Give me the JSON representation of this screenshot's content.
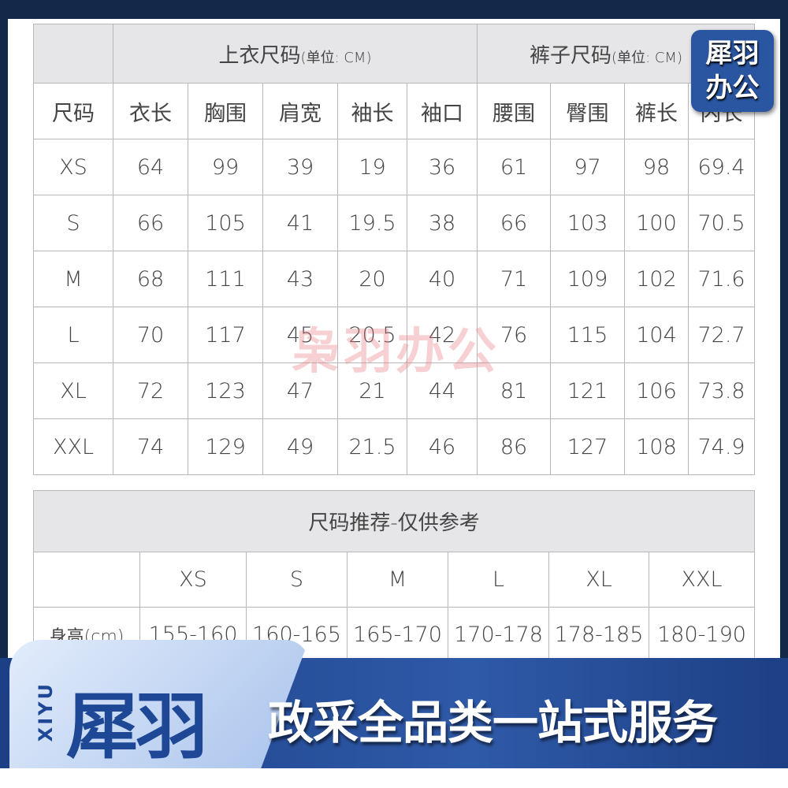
{
  "watermark": "枭羽办公",
  "badge": {
    "line1": "犀羽",
    "line2": "办公"
  },
  "size_table": {
    "top_title": "上衣尺码",
    "top_unit": "(单位: CM)",
    "pants_title": "裤子尺码",
    "pants_unit": "(单位: CM)",
    "columns": [
      "尺码",
      "衣长",
      "胸围",
      "肩宽",
      "袖长",
      "袖口",
      "腰围",
      "臀围",
      "裤长",
      "内长"
    ],
    "rows": [
      [
        "XS",
        "64",
        "99",
        "39",
        "19",
        "36",
        "61",
        "97",
        "98",
        "69.4"
      ],
      [
        "S",
        "66",
        "105",
        "41",
        "19.5",
        "38",
        "66",
        "103",
        "100",
        "70.5"
      ],
      [
        "M",
        "68",
        "111",
        "43",
        "20",
        "40",
        "71",
        "109",
        "102",
        "71.6"
      ],
      [
        "L",
        "70",
        "117",
        "45",
        "20.5",
        "42",
        "76",
        "115",
        "104",
        "72.7"
      ],
      [
        "XL",
        "72",
        "123",
        "47",
        "21",
        "44",
        "81",
        "121",
        "106",
        "73.8"
      ],
      [
        "XXL",
        "74",
        "129",
        "49",
        "21.5",
        "46",
        "86",
        "127",
        "108",
        "74.9"
      ]
    ]
  },
  "recommend_table": {
    "title": "尺码推荐-仅供参考",
    "sizes": [
      "XS",
      "S",
      "M",
      "L",
      "XL",
      "XXL"
    ],
    "row_label": "身高(cm)",
    "heights": [
      "155-160",
      "160-165",
      "165-170",
      "170-178",
      "178-185",
      "180-190"
    ]
  },
  "banner": {
    "xiyu": "XIYU",
    "logo": "犀羽",
    "slogan": "政采全品类一站式服务"
  }
}
